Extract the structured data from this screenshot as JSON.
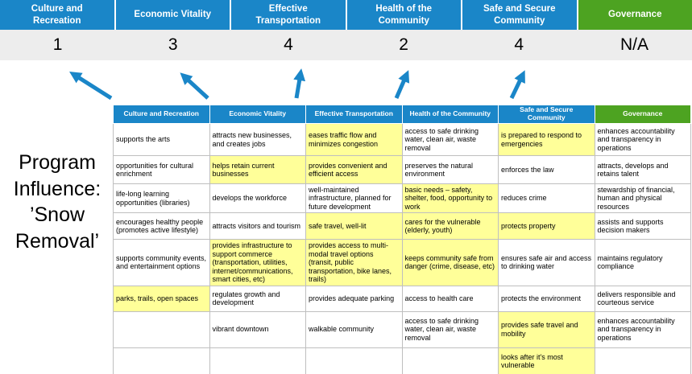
{
  "colors": {
    "pillar_blue": "#1a86c8",
    "pillar_green": "#4da321",
    "highlight_yellow": "#ffff99",
    "score_band_bg": "#ededed",
    "arrow_blue": "#1a86c8"
  },
  "pillars": [
    {
      "label": "Culture and Recreation",
      "score": "1",
      "color": "pillar_blue"
    },
    {
      "label": "Economic Vitality",
      "score": "3",
      "color": "pillar_blue"
    },
    {
      "label": "Effective Transportation",
      "score": "4",
      "color": "pillar_blue"
    },
    {
      "label": "Health of the Community",
      "score": "2",
      "color": "pillar_blue"
    },
    {
      "label": "Safe and Secure Community",
      "score": "4",
      "color": "pillar_blue"
    },
    {
      "label": "Governance",
      "score": "N/A",
      "color": "pillar_green"
    }
  ],
  "program_label": {
    "lines": [
      "Program",
      "Influence:",
      "’Snow",
      "Removal’"
    ]
  },
  "matrix": {
    "rows": [
      {
        "cells": [
          {
            "text": "supports the arts",
            "highlighted": false
          },
          {
            "text": "attracts new businesses, and creates jobs",
            "highlighted": false
          },
          {
            "text": "eases traffic flow and minimizes congestion",
            "highlighted": true
          },
          {
            "text": "access to safe drinking water, clean air, waste removal",
            "highlighted": false
          },
          {
            "text": "is prepared to respond to emergencies",
            "highlighted": true
          },
          {
            "text": "enhances accountability and transparency in operations",
            "highlighted": false
          }
        ]
      },
      {
        "cells": [
          {
            "text": "opportunities for cultural enrichment",
            "highlighted": false
          },
          {
            "text": "helps retain current businesses",
            "highlighted": true
          },
          {
            "text": "provides convenient and efficient access",
            "highlighted": true
          },
          {
            "text": "preserves the natural environment",
            "highlighted": false
          },
          {
            "text": "enforces the law",
            "highlighted": false
          },
          {
            "text": "attracts, develops and retains talent",
            "highlighted": false
          }
        ]
      },
      {
        "cells": [
          {
            "text": "life-long learning opportunities (libraries)",
            "highlighted": false
          },
          {
            "text": "develops the workforce",
            "highlighted": false
          },
          {
            "text": "well-maintained infrastructure, planned for future development",
            "highlighted": false
          },
          {
            "text": "basic needs – safety, shelter, food, opportunity to work",
            "highlighted": true
          },
          {
            "text": "reduces crime",
            "highlighted": false
          },
          {
            "text": "stewardship of financial, human and physical resources",
            "highlighted": false
          }
        ]
      },
      {
        "cells": [
          {
            "text": "encourages healthy people (promotes active lifestyle)",
            "highlighted": false
          },
          {
            "text": "attracts visitors and tourism",
            "highlighted": false
          },
          {
            "text": "safe travel, well-lit",
            "highlighted": true
          },
          {
            "text": "cares for the vulnerable (elderly, youth)",
            "highlighted": true
          },
          {
            "text": "protects property",
            "highlighted": true
          },
          {
            "text": "assists and supports decision makers",
            "highlighted": false
          }
        ]
      },
      {
        "cells": [
          {
            "text": "supports community events, and entertainment options",
            "highlighted": false
          },
          {
            "text": "provides infrastructure to support commerce (transportation, utilities, internet/communications, smart cities, etc)",
            "highlighted": true
          },
          {
            "text": "provides access to multi-modal travel options (transit, public transportation, bike lanes, trails)",
            "highlighted": true
          },
          {
            "text": "keeps community safe from danger (crime, disease, etc)",
            "highlighted": true
          },
          {
            "text": "ensures safe air and access to drinking water",
            "highlighted": false
          },
          {
            "text": "maintains regulatory compliance",
            "highlighted": false
          }
        ]
      },
      {
        "cells": [
          {
            "text": "parks, trails, open spaces",
            "highlighted": true
          },
          {
            "text": "regulates growth and development",
            "highlighted": false
          },
          {
            "text": "provides adequate parking",
            "highlighted": false
          },
          {
            "text": "access to health care",
            "highlighted": false
          },
          {
            "text": "protects the environment",
            "highlighted": false
          },
          {
            "text": "delivers responsible and courteous service",
            "highlighted": false
          }
        ]
      },
      {
        "cells": [
          {
            "text": "",
            "highlighted": false
          },
          {
            "text": "vibrant downtown",
            "highlighted": false
          },
          {
            "text": "walkable community",
            "highlighted": false
          },
          {
            "text": "access to safe drinking water, clean air, waste removal",
            "highlighted": false
          },
          {
            "text": "provides safe travel and mobility",
            "highlighted": true
          },
          {
            "text": "enhances accountability and transparency in operations",
            "highlighted": false
          }
        ]
      },
      {
        "cells": [
          {
            "text": "",
            "highlighted": false
          },
          {
            "text": "",
            "highlighted": false
          },
          {
            "text": "",
            "highlighted": false
          },
          {
            "text": "",
            "highlighted": false
          },
          {
            "text": "looks after it's most vulnerable",
            "highlighted": true
          },
          {
            "text": "",
            "highlighted": false
          }
        ]
      }
    ]
  }
}
